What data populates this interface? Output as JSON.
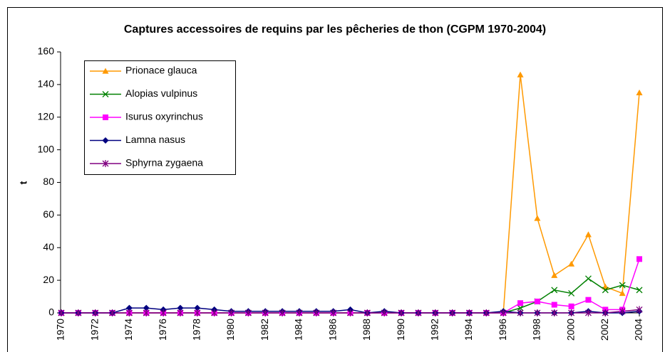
{
  "chart_data": {
    "type": "line",
    "title": "Captures accessoires de requins par les pêcheries de thon (CGPM 1970-2004)",
    "y_label": "t",
    "x": [
      1970,
      1971,
      1972,
      1973,
      1974,
      1975,
      1976,
      1977,
      1978,
      1979,
      1980,
      1981,
      1982,
      1983,
      1984,
      1985,
      1986,
      1987,
      1988,
      1989,
      1990,
      1991,
      1992,
      1993,
      1994,
      1995,
      1996,
      1997,
      1998,
      1999,
      2000,
      2001,
      2002,
      2003,
      2004
    ],
    "xlim": [
      1970,
      2004
    ],
    "xticks": [
      1970,
      1972,
      1974,
      1976,
      1978,
      1980,
      1982,
      1984,
      1986,
      1988,
      1990,
      1992,
      1994,
      1996,
      1998,
      2000,
      2002,
      2004
    ],
    "ylim": [
      0,
      160
    ],
    "yticks": [
      0,
      20,
      40,
      60,
      80,
      100,
      120,
      140,
      160
    ],
    "legend": "upper left",
    "series": [
      {
        "name": "Prionace glauca",
        "color": "#ff9900",
        "marker": "triangle",
        "values": [
          0,
          0,
          0,
          0,
          0,
          0,
          0,
          0,
          0,
          0,
          0,
          0,
          0,
          0,
          0,
          0,
          0,
          0,
          0,
          0,
          0,
          0,
          0,
          0,
          0,
          0,
          0,
          146,
          58,
          23,
          30,
          48,
          16,
          12,
          135
        ]
      },
      {
        "name": "Alopias vulpinus",
        "color": "#008000",
        "marker": "x",
        "values": [
          0,
          0,
          0,
          0,
          0,
          0,
          0,
          0,
          0,
          0,
          0,
          0,
          0,
          0,
          0,
          0,
          0,
          0,
          0,
          0,
          0,
          0,
          0,
          0,
          0,
          0,
          0,
          3,
          7,
          14,
          12,
          21,
          14,
          17,
          14
        ]
      },
      {
        "name": "Isurus oxyrinchus",
        "color": "#ff00ff",
        "marker": "square",
        "values": [
          0,
          0,
          0,
          0,
          0,
          0,
          0,
          0,
          0,
          0,
          0,
          0,
          0,
          0,
          0,
          0,
          0,
          0,
          0,
          0,
          0,
          0,
          0,
          0,
          0,
          0,
          0,
          6,
          7,
          5,
          4,
          8,
          2,
          2,
          33
        ]
      },
      {
        "name": "Lamna nasus",
        "color": "#000080",
        "marker": "diamond",
        "values": [
          0,
          0,
          0,
          0,
          3,
          3,
          2,
          3,
          3,
          2,
          1,
          1,
          1,
          1,
          1,
          1,
          1,
          2,
          0,
          1,
          0,
          0,
          0,
          0,
          0,
          0,
          1,
          0,
          0,
          0,
          0,
          1,
          0,
          0,
          1
        ]
      },
      {
        "name": "Sphyrna zygaena",
        "color": "#800080",
        "marker": "star",
        "values": [
          0,
          0,
          0,
          0,
          0,
          0,
          0,
          0,
          0,
          0,
          0,
          0,
          0,
          0,
          0,
          0,
          0,
          0,
          0,
          0,
          0,
          0,
          0,
          0,
          0,
          0,
          0,
          0,
          0,
          0,
          0,
          0,
          0,
          1,
          2
        ]
      }
    ]
  }
}
